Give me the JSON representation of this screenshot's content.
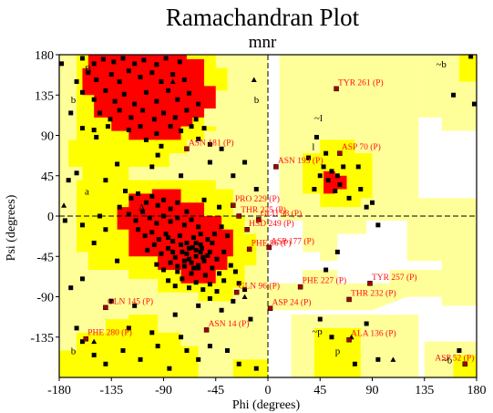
{
  "chart_data": {
    "type": "scatter",
    "title": "Ramachandran Plot",
    "subtitle": "mnr",
    "xlabel": "Phi (degrees)",
    "ylabel": "Psi (degrees)",
    "xlim": [
      -180,
      180
    ],
    "ylim": [
      -180,
      180
    ],
    "xticks": [
      "-180",
      "-135",
      "-90",
      "-45",
      "0",
      "45",
      "90",
      "135",
      "180"
    ],
    "yticks": [
      "180",
      "135",
      "90",
      "45",
      "0",
      "-45",
      "-90",
      "-135"
    ],
    "region_labels": [
      {
        "text": "B",
        "phi": -158,
        "psi": 164
      },
      {
        "text": "b",
        "phi": -170,
        "psi": 130
      },
      {
        "text": "b",
        "phi": -12,
        "psi": 130
      },
      {
        "text": "a",
        "phi": -158,
        "psi": 28
      },
      {
        "text": "A",
        "phi": -112,
        "psi": 10
      },
      {
        "text": "~b",
        "phi": 145,
        "psi": 170
      },
      {
        "text": "~l",
        "phi": 40,
        "psi": 110
      },
      {
        "text": "l",
        "phi": 38,
        "psi": 78
      },
      {
        "text": "~p",
        "phi": 38,
        "psi": -128
      },
      {
        "text": "p",
        "phi": 58,
        "psi": -150
      },
      {
        "text": "b",
        "phi": -170,
        "psi": -150
      },
      {
        "text": "~b",
        "phi": 150,
        "psi": -160
      }
    ],
    "colors": {
      "core": "#ff0000",
      "allowed": "#ffff00",
      "generous": "#ffff99",
      "disallowed": "#ffffff",
      "residue": "#000000",
      "outlier": "#a40000",
      "label": "#ff1010"
    },
    "labelled_residues": [
      {
        "name": "TYR 261 (P)",
        "phi": 59,
        "psi": 142
      },
      {
        "name": "ASN 181 (P)",
        "phi": -70,
        "psi": 75
      },
      {
        "name": "ASP 70 (P)",
        "phi": 62,
        "psi": 70
      },
      {
        "name": "ASN 193 (P)",
        "phi": 7,
        "psi": 55
      },
      {
        "name": "PRO 229 (P)",
        "phi": -30,
        "psi": 12
      },
      {
        "name": "THR 225 (P)",
        "phi": -25,
        "psi": 0
      },
      {
        "name": "GLU 98 (P)",
        "phi": -8,
        "psi": -4
      },
      {
        "name": "HSD 249 (P)",
        "phi": -18,
        "psi": -15
      },
      {
        "name": "PHE 86 (P)",
        "phi": -16,
        "psi": -37
      },
      {
        "name": "ASP 177 (P)",
        "phi": 1,
        "psi": -35
      },
      {
        "name": "TYR 257 (P)",
        "phi": 88,
        "psi": -75
      },
      {
        "name": "PHE 227 (P)",
        "phi": 28,
        "psi": -79
      },
      {
        "name": "GLN 96 (P)",
        "phi": -27,
        "psi": -85
      },
      {
        "name": "THR 232 (P)",
        "phi": 70,
        "psi": -93
      },
      {
        "name": "ASP 24 (P)",
        "phi": 2,
        "psi": -103
      },
      {
        "name": "GLN 145 (P)",
        "phi": -140,
        "psi": -102
      },
      {
        "name": "ASN 14 (P)",
        "phi": -53,
        "psi": -127
      },
      {
        "name": "PHE 280 (P)",
        "phi": -157,
        "psi": -137
      },
      {
        "name": "ALA 136 (P)",
        "phi": 70,
        "psi": -138
      },
      {
        "name": "ASP 52 (P)",
        "phi": 170,
        "psi": -165
      }
    ],
    "points": [
      [
        -160,
        176
      ],
      [
        -150,
        170
      ],
      [
        -142,
        175
      ],
      [
        -133,
        172
      ],
      [
        -125,
        176
      ],
      [
        -115,
        170
      ],
      [
        -107,
        174
      ],
      [
        -96,
        169
      ],
      [
        -88,
        176
      ],
      [
        -76,
        172
      ],
      [
        -155,
        160
      ],
      [
        -148,
        152
      ],
      [
        -135,
        158
      ],
      [
        -128,
        150
      ],
      [
        -120,
        162
      ],
      [
        -110,
        155
      ],
      [
        -100,
        160
      ],
      [
        -92,
        150
      ],
      [
        -82,
        158
      ],
      [
        -72,
        152
      ],
      [
        -160,
        138
      ],
      [
        -150,
        130
      ],
      [
        -140,
        140
      ],
      [
        -132,
        128
      ],
      [
        -124,
        136
      ],
      [
        -115,
        125
      ],
      [
        -105,
        138
      ],
      [
        -96,
        128
      ],
      [
        -86,
        140
      ],
      [
        -78,
        130
      ],
      [
        -68,
        137
      ],
      [
        -60,
        125
      ],
      [
        -145,
        115
      ],
      [
        -136,
        108
      ],
      [
        -128,
        118
      ],
      [
        -118,
        110
      ],
      [
        -108,
        118
      ],
      [
        -98,
        108
      ],
      [
        -90,
        115
      ],
      [
        -80,
        110
      ],
      [
        -70,
        118
      ],
      [
        -62,
        108
      ],
      [
        -150,
        96
      ],
      [
        -138,
        100
      ],
      [
        -120,
        96
      ],
      [
        -110,
        100
      ],
      [
        -96,
        92
      ],
      [
        -84,
        100
      ],
      [
        -75,
        95
      ],
      [
        -66,
        100
      ],
      [
        -55,
        98
      ],
      [
        -105,
        85
      ],
      [
        -92,
        78
      ],
      [
        -60,
        86
      ],
      [
        -50,
        80
      ],
      [
        -40,
        75
      ],
      [
        -95,
        68
      ],
      [
        -165,
        150
      ],
      [
        -170,
        115
      ],
      [
        -160,
        98
      ],
      [
        -148,
        88
      ],
      [
        -123,
        28
      ],
      [
        -118,
        20
      ],
      [
        -112,
        25
      ],
      [
        -105,
        15
      ],
      [
        -100,
        22
      ],
      [
        -95,
        12
      ],
      [
        -90,
        18
      ],
      [
        -84,
        8
      ],
      [
        -78,
        15
      ],
      [
        -70,
        5
      ],
      [
        -128,
        10
      ],
      [
        -120,
        2
      ],
      [
        -114,
        -5
      ],
      [
        -108,
        5
      ],
      [
        -102,
        -2
      ],
      [
        -96,
        -8
      ],
      [
        -90,
        0
      ],
      [
        -84,
        -6
      ],
      [
        -78,
        -2
      ],
      [
        -72,
        -10
      ],
      [
        -66,
        -4
      ],
      [
        -60,
        -12
      ],
      [
        -112,
        -15
      ],
      [
        -106,
        -22
      ],
      [
        -100,
        -18
      ],
      [
        -94,
        -26
      ],
      [
        -88,
        -20
      ],
      [
        -82,
        -28
      ],
      [
        -76,
        -22
      ],
      [
        -70,
        -30
      ],
      [
        -64,
        -24
      ],
      [
        -58,
        -32
      ],
      [
        -52,
        -26
      ],
      [
        -104,
        -38
      ],
      [
        -98,
        -32
      ],
      [
        -92,
        -42
      ],
      [
        -86,
        -36
      ],
      [
        -80,
        -46
      ],
      [
        -74,
        -40
      ],
      [
        -68,
        -48
      ],
      [
        -62,
        -38
      ],
      [
        -56,
        -46
      ],
      [
        -50,
        -40
      ],
      [
        -44,
        -48
      ],
      [
        -96,
        -54
      ],
      [
        -90,
        -60
      ],
      [
        -84,
        -52
      ],
      [
        -78,
        -62
      ],
      [
        -72,
        -56
      ],
      [
        -66,
        -64
      ],
      [
        -60,
        -58
      ],
      [
        -54,
        -66
      ],
      [
        -48,
        -58
      ],
      [
        -42,
        -64
      ],
      [
        -86,
        -72
      ],
      [
        -80,
        -78
      ],
      [
        -74,
        -70
      ],
      [
        -68,
        -80
      ],
      [
        -62,
        -74
      ],
      [
        -56,
        -82
      ],
      [
        -50,
        -76
      ],
      [
        -44,
        -84
      ],
      [
        -38,
        -72
      ],
      [
        -65,
        -35
      ],
      [
        -62,
        -45
      ],
      [
        -58,
        -40
      ],
      [
        -55,
        -50
      ],
      [
        -70,
        -42
      ],
      [
        -66,
        -52
      ],
      [
        -62,
        -30
      ],
      [
        -60,
        -55
      ],
      [
        -57,
        -36
      ],
      [
        -52,
        -44
      ],
      [
        -75,
        -32
      ],
      [
        -72,
        -50
      ],
      [
        -68,
        -36
      ],
      [
        -64,
        -58
      ],
      [
        -78,
        -56
      ],
      [
        -82,
        -40
      ],
      [
        -86,
        -24
      ],
      [
        -58,
        -20
      ],
      [
        -48,
        -30
      ],
      [
        -46,
        -20
      ],
      [
        -40,
        -12
      ],
      [
        -35,
        -22
      ],
      [
        -38,
        -40
      ],
      [
        -32,
        -55
      ],
      [
        -28,
        -62
      ],
      [
        -25,
        -75
      ],
      [
        -20,
        -82
      ],
      [
        -30,
        -95
      ],
      [
        -60,
        -100
      ],
      [
        -50,
        -92
      ],
      [
        -140,
        -15
      ],
      [
        -150,
        -30
      ],
      [
        -160,
        -70
      ],
      [
        -170,
        -80
      ],
      [
        -130,
        -50
      ],
      [
        -135,
        -95
      ],
      [
        -115,
        -100
      ],
      [
        -80,
        -110
      ],
      [
        -40,
        -105
      ],
      [
        -15,
        -115
      ],
      [
        -160,
        -140
      ],
      [
        -150,
        -155
      ],
      [
        -140,
        -165
      ],
      [
        -125,
        -150
      ],
      [
        -110,
        -160
      ],
      [
        -95,
        -145
      ],
      [
        -85,
        -170
      ],
      [
        -70,
        -150
      ],
      [
        -60,
        -160
      ],
      [
        -50,
        -145
      ],
      [
        -165,
        -125
      ],
      [
        -120,
        -125
      ],
      [
        -100,
        -130
      ],
      [
        -75,
        -135
      ],
      [
        -35,
        -150
      ],
      [
        -25,
        -165
      ],
      [
        -10,
        -170
      ],
      [
        -130,
        58
      ],
      [
        -140,
        40
      ],
      [
        -100,
        55
      ],
      [
        -75,
        45
      ],
      [
        -50,
        60
      ],
      [
        -30,
        45
      ],
      [
        -20,
        60
      ],
      [
        -10,
        30
      ],
      [
        -55,
        18
      ],
      [
        -42,
        10
      ],
      [
        -165,
        48
      ],
      [
        -172,
        40
      ],
      [
        -145,
        0
      ],
      [
        -160,
        -10
      ],
      [
        -178,
        170
      ],
      [
        -175,
        -5
      ],
      [
        55,
        50
      ],
      [
        60,
        45
      ],
      [
        52,
        40
      ],
      [
        48,
        55
      ],
      [
        62,
        35
      ],
      [
        45,
        45
      ],
      [
        65,
        55
      ],
      [
        58,
        28
      ],
      [
        40,
        30
      ],
      [
        70,
        20
      ],
      [
        80,
        30
      ],
      [
        85,
        10
      ],
      [
        90,
        15
      ],
      [
        50,
        70
      ],
      [
        42,
        88
      ],
      [
        35,
        65
      ],
      [
        78,
        55
      ],
      [
        95,
        -10
      ],
      [
        60,
        -40
      ],
      [
        50,
        -60
      ],
      [
        175,
        178
      ],
      [
        178,
        125
      ],
      [
        160,
        135
      ],
      [
        165,
        -150
      ],
      [
        170,
        -165
      ],
      [
        95,
        -160
      ],
      [
        75,
        -165
      ],
      [
        85,
        -120
      ],
      [
        55,
        -135
      ],
      [
        45,
        -115
      ]
    ],
    "gly_points": [
      [
        -176,
        12
      ],
      [
        -150,
        -140
      ],
      [
        108,
        -160
      ],
      [
        72,
        -135
      ],
      [
        -20,
        -90
      ],
      [
        88,
        -75
      ],
      [
        -82,
        150
      ],
      [
        -12,
        152
      ]
    ]
  }
}
